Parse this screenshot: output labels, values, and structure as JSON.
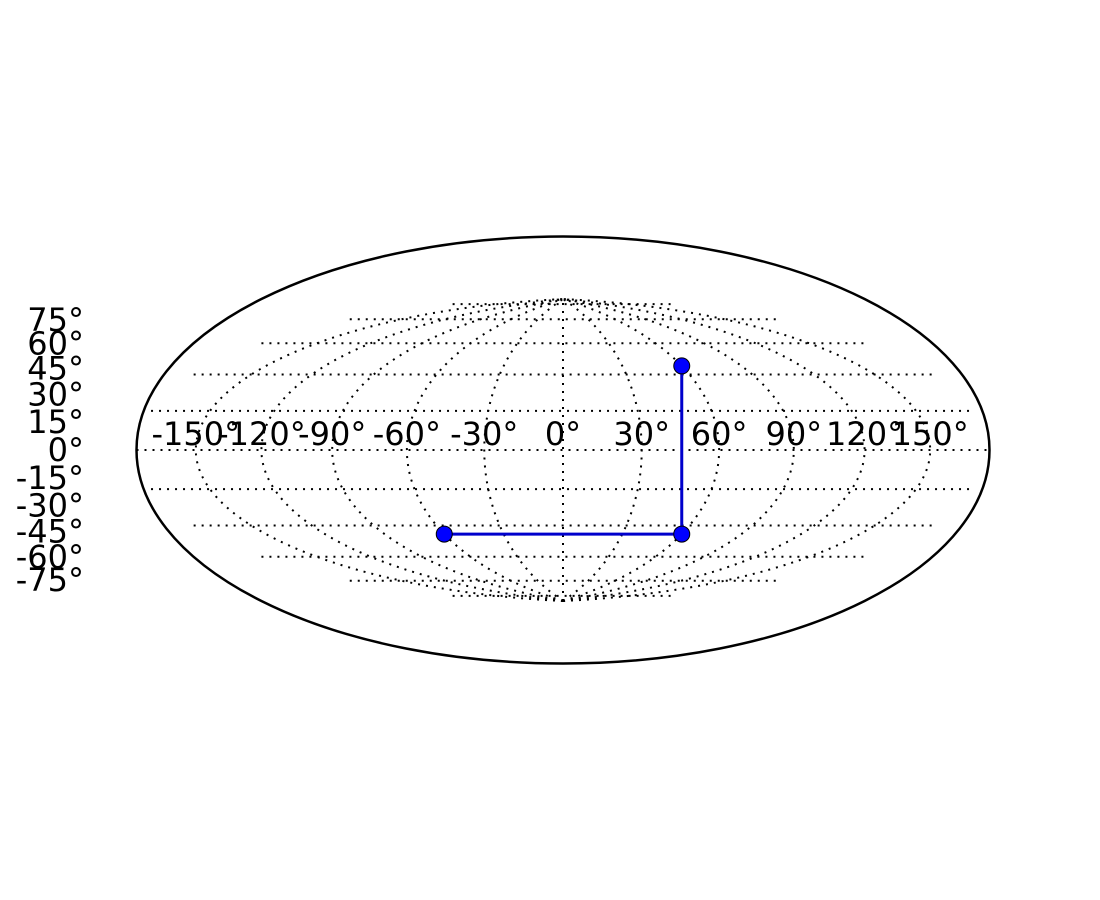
{
  "chart_data": {
    "type": "line",
    "projection": "hammer",
    "title": "",
    "xlabel": "",
    "ylabel": "",
    "xlim": [
      -180,
      180
    ],
    "ylim": [
      -90,
      90
    ],
    "grid": true,
    "xticks": [
      -150,
      -120,
      -90,
      -60,
      -30,
      0,
      30,
      60,
      90,
      120,
      150
    ],
    "yticks": [
      75,
      60,
      45,
      30,
      15,
      0,
      -15,
      -30,
      -45,
      -60,
      -75
    ],
    "xtick_labels": [
      "-150°",
      "-120°",
      "-90°",
      "-60°",
      "-30°",
      "0°",
      "30°",
      "60°",
      "90°",
      "120°",
      "150°"
    ],
    "ytick_labels": [
      "75°",
      "60°",
      "45°",
      "30°",
      "15°",
      "0°",
      "-15°",
      "-30°",
      "-45°",
      "-60°",
      "-75°"
    ],
    "series": [
      {
        "x": [
          -60,
          60,
          60
        ],
        "y": [
          -45,
          -45,
          45
        ]
      }
    ],
    "colors": {
      "line": "#0000cc",
      "marker": "#0000ff",
      "outline": "#000000",
      "grid": "#000000"
    }
  }
}
